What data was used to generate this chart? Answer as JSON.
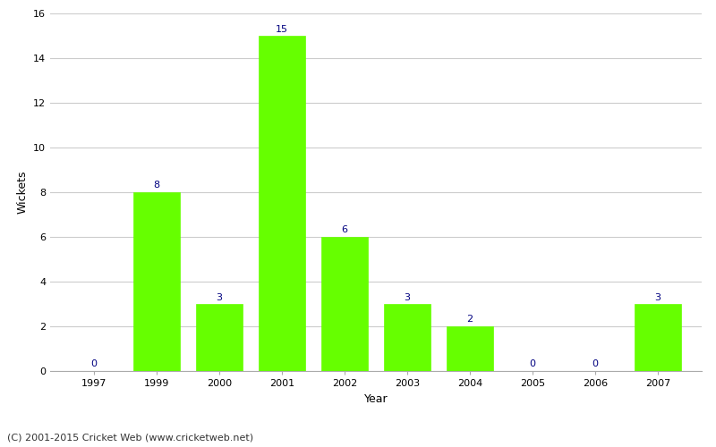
{
  "years": [
    "1997",
    "1999",
    "2000",
    "2001",
    "2002",
    "2003",
    "2004",
    "2005",
    "2006",
    "2007"
  ],
  "wickets": [
    0,
    8,
    3,
    15,
    6,
    3,
    2,
    0,
    0,
    3
  ],
  "bar_color": "#66ff00",
  "bar_edge_color": "#66ff00",
  "xlabel": "Year",
  "ylabel": "Wickets",
  "ylim": [
    0,
    16
  ],
  "yticks": [
    0,
    2,
    4,
    6,
    8,
    10,
    12,
    14,
    16
  ],
  "label_color": "#000080",
  "label_fontsize": 8,
  "axis_fontsize": 9,
  "tick_fontsize": 8,
  "grid_color": "#cccccc",
  "background_color": "#ffffff",
  "footer_text": "(C) 2001-2015 Cricket Web (www.cricketweb.net)",
  "footer_fontsize": 8,
  "bar_width": 0.75
}
